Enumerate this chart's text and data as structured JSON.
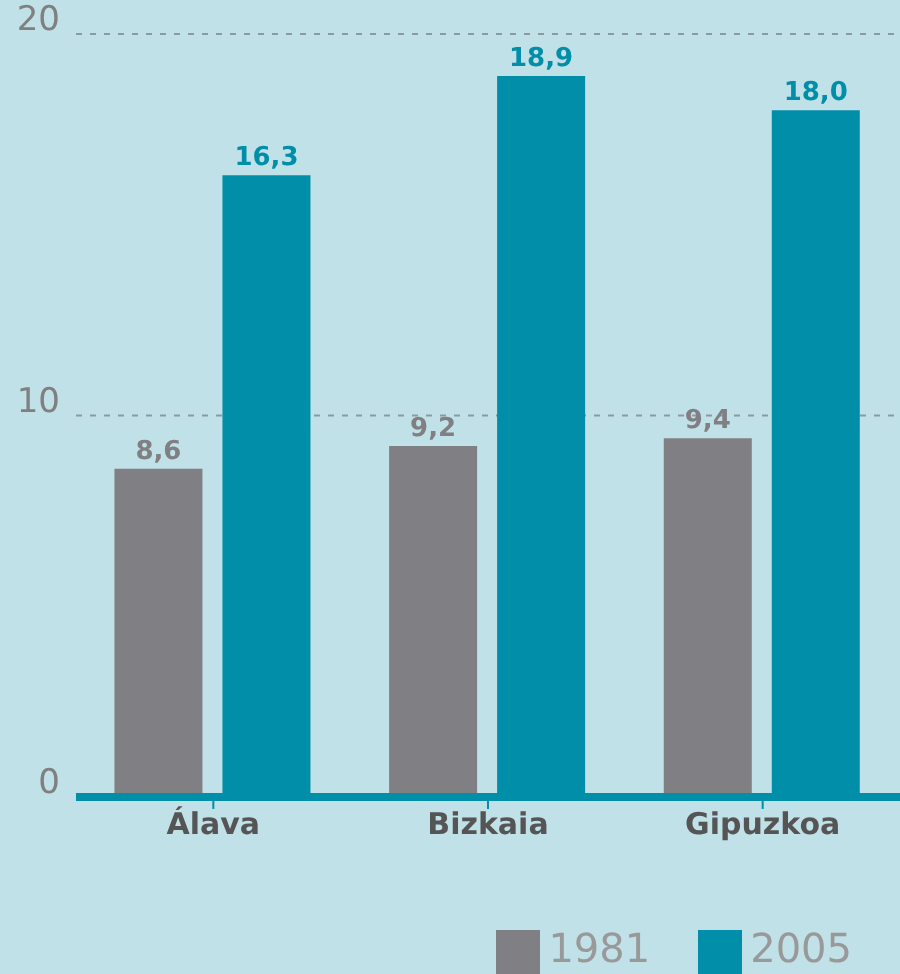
{
  "chart_data": {
    "type": "bar",
    "categories": [
      "Álava",
      "Bizkaia",
      "Gipuzkoa"
    ],
    "series": [
      {
        "name": "1981",
        "color": "#807f83",
        "values": [
          8.6,
          9.2,
          9.4
        ],
        "value_labels": [
          "8,6",
          "9,2",
          "9,4"
        ]
      },
      {
        "name": "2005",
        "color": "#008ea8",
        "values": [
          16.3,
          18.9,
          18.0
        ],
        "value_labels": [
          "16,3",
          "18,9",
          "18,0"
        ]
      }
    ],
    "ylim": [
      0,
      20
    ],
    "yticks": [
      0,
      10,
      20
    ],
    "grid": "y",
    "legend": "bottom right"
  }
}
